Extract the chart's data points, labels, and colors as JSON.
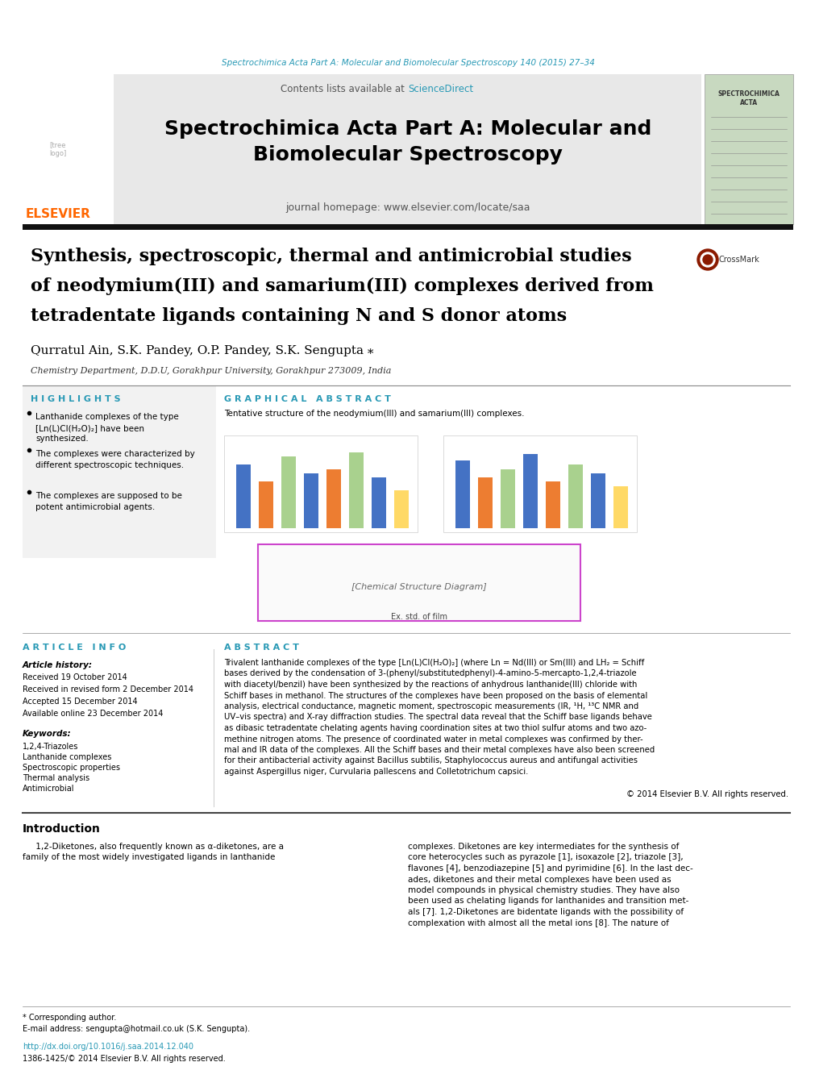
{
  "page_bg": "#ffffff",
  "top_journal_line": "Spectrochimica Acta Part A: Molecular and Biomolecular Spectroscopy 140 (2015) 27–34",
  "top_journal_color": "#2899b5",
  "header_bg": "#e8e8e8",
  "header_contents_pre": "Contents lists available at ",
  "header_sciencedirect": "ScienceDirect",
  "header_journal_homepage": "journal homepage: www.elsevier.com/locate/saa",
  "header_link_color": "#2899b5",
  "article_title_lines": [
    "Synthesis, spectroscopic, thermal and antimicrobial studies",
    "of neodymium(III) and samarium(III) complexes derived from",
    "tetradentate ligands containing N and S donor atoms"
  ],
  "authors": "Qurratul Ain, S.K. Pandey, O.P. Pandey, S.K. Sengupta",
  "affiliation": "Chemistry Department, D.D.U, Gorakhpur University, Gorakhpur 273009, India",
  "highlights_title": "H I G H L I G H T S",
  "highlights": [
    "Lanthanide complexes of the type\n[Ln(L)Cl(H₂O)₂] have been\nsynthesized.",
    "The complexes were characterized by\ndifferent spectroscopic techniques.",
    "The complexes are supposed to be\npotent antimicrobial agents."
  ],
  "graphical_title": "G R A P H I C A L   A B S T R A C T",
  "graphical_caption": "Tentative structure of the neodymium(III) and samarium(III) complexes.",
  "article_info_title": "A R T I C L E   I N F O",
  "article_history_title": "Article history:",
  "received": "Received 19 October 2014",
  "revised": "Received in revised form 2 December 2014",
  "accepted": "Accepted 15 December 2014",
  "available": "Available online 23 December 2014",
  "keywords_title": "Keywords:",
  "keywords": [
    "1,2,4-Triazoles",
    "Lanthanide complexes",
    "Spectroscopic properties",
    "Thermal analysis",
    "Antimicrobial"
  ],
  "abstract_title": "A B S T R A C T",
  "abstract_lines": [
    "Trivalent lanthanide complexes of the type [Ln(L)Cl(H₂O)₂] (where Ln = Nd(III) or Sm(III) and LH₂ = Schiff",
    "bases derived by the condensation of 3-(phenyl/substitutedphenyl)-4-amino-5-mercapto-1,2,4-triazole",
    "with diacetyl/benzil) have been synthesized by the reactions of anhydrous lanthanide(III) chloride with",
    "Schiff bases in methanol. The structures of the complexes have been proposed on the basis of elemental",
    "analysis, electrical conductance, magnetic moment, spectroscopic measurements (IR, ¹H, ¹³C NMR and",
    "UV–vis spectra) and X-ray diffraction studies. The spectral data reveal that the Schiff base ligands behave",
    "as dibasic tetradentate chelating agents having coordination sites at two thiol sulfur atoms and two azo-",
    "methine nitrogen atoms. The presence of coordinated water in metal complexes was confirmed by ther-",
    "mal and IR data of the complexes. All the Schiff bases and their metal complexes have also been screened",
    "for their antibacterial activity against Bacillus subtilis, Staphylococcus aureus and antifungal activities",
    "against Aspergillus niger, Curvularia pallescens and Colletotrichum capsici."
  ],
  "copyright": "© 2014 Elsevier B.V. All rights reserved.",
  "intro_title": "Introduction",
  "intro_col1": [
    "     1,2-Diketones, also frequently known as α-diketones, are a",
    "family of the most widely investigated ligands in lanthanide"
  ],
  "intro_col2": [
    "complexes. Diketones are key intermediates for the synthesis of",
    "core heterocycles such as pyrazole [1], isoxazole [2], triazole [3],",
    "flavones [4], benzodiazepine [5] and pyrimidine [6]. In the last dec-",
    "ades, diketones and their metal complexes have been used as",
    "model compounds in physical chemistry studies. They have also",
    "been used as chelating ligands for lanthanides and transition met-",
    "als [7]. 1,2-Diketones are bidentate ligands with the possibility of",
    "complexation with almost all the metal ions [8]. The nature of"
  ],
  "footnote_corresponding": "* Corresponding author.",
  "footnote_email": "E-mail address: sengupta@hotmail.co.uk (S.K. Sengupta).",
  "doi_text": "http://dx.doi.org/10.1016/j.saa.2014.12.040",
  "issn_text": "1386-1425/© 2014 Elsevier B.V. All rights reserved.",
  "elsevier_color": "#ff6600",
  "section_title_color": "#2899b5",
  "bar_colors_left": [
    "#4472c4",
    "#ed7d31",
    "#a9d18e",
    "#4472c4",
    "#ed7d31",
    "#a9d18e",
    "#4472c4",
    "#ffd966"
  ],
  "bar_heights_left": [
    75,
    55,
    85,
    65,
    70,
    90,
    60,
    45
  ],
  "bar_colors_right": [
    "#4472c4",
    "#ed7d31",
    "#a9d18e",
    "#4472c4",
    "#ed7d31",
    "#a9d18e",
    "#4472c4",
    "#ffd966"
  ],
  "bar_heights_right": [
    80,
    60,
    70,
    88,
    55,
    75,
    65,
    50
  ]
}
